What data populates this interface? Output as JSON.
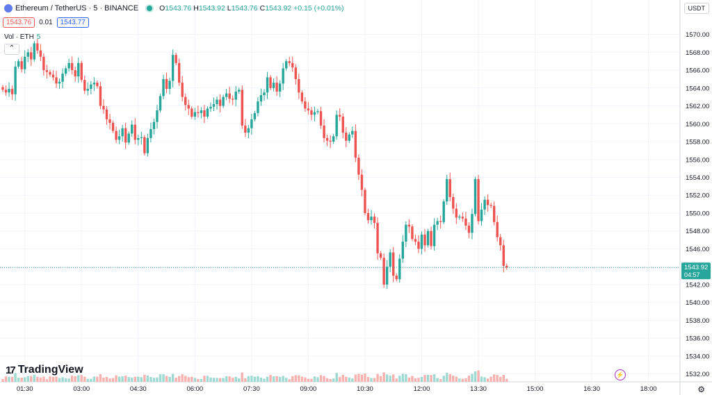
{
  "header": {
    "symbol": "Ethereum / TetherUS · 5 · BINANCE",
    "open": "1543.76",
    "high": "1543.92",
    "low": "1543.76",
    "close": "1543.92",
    "change": "+0.15 (+0.01%)"
  },
  "quote": {
    "bid": "1543.76",
    "spread": "0.01",
    "ask": "1543.77"
  },
  "volume_label": {
    "name": "Vol · ETH",
    "value": "5"
  },
  "currency": "USDT",
  "brand": "TradingView",
  "colors": {
    "up": "#26a69a",
    "down": "#ef5350",
    "grid": "#f0f3fa",
    "axis": "#131722"
  },
  "chart_data": {
    "type": "candlestick",
    "symbol": "ETH/USDT",
    "interval": "5m",
    "y_axis": {
      "min": 1531,
      "max": 1572,
      "ticks": [
        1532,
        1534,
        1536,
        1538,
        1540,
        1542,
        1544,
        1546,
        1548,
        1550,
        1552,
        1554,
        1556,
        1558,
        1560,
        1562,
        1564,
        1566,
        1568,
        1570
      ]
    },
    "x_ticks": [
      {
        "index": 7,
        "label": "01:30"
      },
      {
        "index": 25,
        "label": "03:00"
      },
      {
        "index": 43,
        "label": "04:30"
      },
      {
        "index": 61,
        "label": "06:00"
      },
      {
        "index": 79,
        "label": "07:30"
      },
      {
        "index": 97,
        "label": "09:00"
      },
      {
        "index": 115,
        "label": "10:30"
      },
      {
        "index": 133,
        "label": "12:00"
      },
      {
        "index": 151,
        "label": "13:30"
      },
      {
        "index": 169,
        "label": "15:00"
      },
      {
        "index": 187,
        "label": "16:30"
      },
      {
        "index": 205,
        "label": "18:00"
      }
    ],
    "last_price": {
      "value": 1543.92,
      "label": "1543.92",
      "countdown": "04:57"
    },
    "closes": [
      1563.8,
      1563.5,
      1563.9,
      1563.3,
      1566.4,
      1567.0,
      1566.1,
      1567.5,
      1568.0,
      1567.2,
      1569.0,
      1568.2,
      1567.5,
      1566.0,
      1565.8,
      1565.5,
      1565.2,
      1564.5,
      1564.7,
      1565.6,
      1566.2,
      1566.8,
      1566.0,
      1565.3,
      1566.8,
      1564.9,
      1563.7,
      1563.9,
      1564.4,
      1564.6,
      1564.2,
      1562.0,
      1561.6,
      1560.5,
      1560.1,
      1559.2,
      1558.2,
      1558.6,
      1559.5,
      1557.9,
      1558.9,
      1559.9,
      1558.2,
      1558.4,
      1558.5,
      1556.7,
      1558.4,
      1559.4,
      1560.2,
      1561.5,
      1563.1,
      1565.0,
      1563.9,
      1564.8,
      1567.7,
      1566.8,
      1564.6,
      1563.0,
      1562.1,
      1561.7,
      1560.8,
      1561.3,
      1561.2,
      1561.5,
      1560.8,
      1561.7,
      1561.9,
      1562.2,
      1562.7,
      1562.0,
      1563.0,
      1563.4,
      1562.8,
      1562.7,
      1563.6,
      1563.8,
      1559.8,
      1559.0,
      1559.5,
      1560.5,
      1561.2,
      1562.5,
      1563.2,
      1563.5,
      1565.2,
      1564.0,
      1564.6,
      1563.6,
      1564.5,
      1566.2,
      1567.0,
      1566.8,
      1566.3,
      1565.0,
      1563.5,
      1562.5,
      1561.7,
      1561.5,
      1561.0,
      1561.3,
      1561.4,
      1559.8,
      1558.4,
      1558.1,
      1558.0,
      1558.6,
      1561.0,
      1560.8,
      1559.0,
      1558.1,
      1558.8,
      1559.2,
      1556.2,
      1554.3,
      1552.6,
      1550.0,
      1549.2,
      1549.6,
      1548.9,
      1545.5,
      1545.0,
      1542.0,
      1544.0,
      1545.6,
      1543.0,
      1542.6,
      1544.9,
      1546.8,
      1548.7,
      1548.5,
      1547.1,
      1546.8,
      1546.0,
      1547.6,
      1546.4,
      1548.0,
      1546.3,
      1548.7,
      1549.1,
      1549.0,
      1551.3,
      1553.8,
      1551.8,
      1550.5,
      1549.5,
      1549.6,
      1549.4,
      1548.6,
      1547.8,
      1549.9,
      1553.8,
      1549.1,
      1550.4,
      1551.5,
      1550.9,
      1550.8,
      1549.0,
      1547.3,
      1546.4,
      1544.1,
      1543.9
    ]
  }
}
